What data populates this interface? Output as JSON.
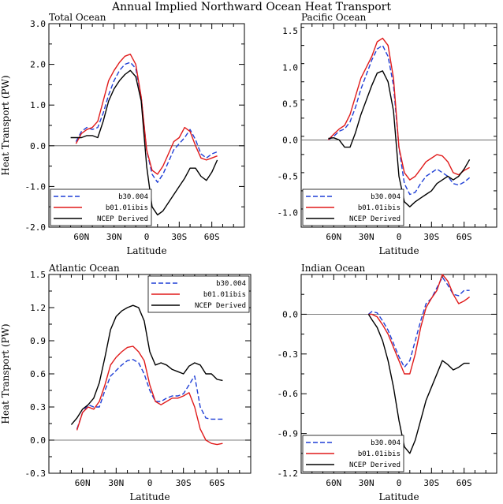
{
  "figure_title": "Annual Implied Northward Ocean Heat Transport",
  "colors": {
    "b30.004": "#1f3fd6",
    "b01.01ibis": "#e01a1a",
    "NCEP Derived": "#000000",
    "zero_line": "#555555"
  },
  "chart_data": [
    {
      "type": "line",
      "title": "Total Ocean",
      "xlabel": "Latitude",
      "ylabel": "Heat Transport (PW)",
      "x_axis_direction": "north-to-south (90N left, 90S right)",
      "xlim": [
        90,
        -90
      ],
      "ylim": [
        -2.0,
        3.0
      ],
      "xticks": [
        60,
        30,
        0,
        -30,
        -60
      ],
      "xtick_labels": [
        "60N",
        "30N",
        "0",
        "30S",
        "60S"
      ],
      "yticks": [
        -2.0,
        -1.0,
        0.0,
        1.0,
        2.0,
        3.0
      ],
      "ytick_labels": [
        "-2.0",
        "-1.0",
        "0.0",
        "1.0",
        "2.0",
        "3.0"
      ],
      "zero_line": true,
      "legend": [
        "b30.004",
        "b01.01ibis",
        "NCEP Derived"
      ],
      "legend_position": "bottom-left",
      "series": [
        {
          "name": "b30.004",
          "style": "dashed",
          "x": [
            65,
            60,
            55,
            50,
            45,
            40,
            35,
            30,
            25,
            20,
            15,
            10,
            5,
            0,
            -5,
            -10,
            -15,
            -20,
            -25,
            -30,
            -35,
            -40,
            -45,
            -50,
            -55,
            -60,
            -65
          ],
          "y": [
            0.1,
            0.35,
            0.45,
            0.4,
            0.45,
            0.8,
            1.25,
            1.6,
            1.85,
            2.0,
            2.05,
            1.9,
            1.2,
            -0.1,
            -0.7,
            -0.9,
            -0.7,
            -0.4,
            -0.1,
            0.05,
            0.2,
            0.4,
            0.15,
            -0.2,
            -0.3,
            -0.2,
            -0.15
          ]
        },
        {
          "name": "b01.01ibis",
          "style": "solid",
          "x": [
            65,
            60,
            55,
            50,
            45,
            40,
            35,
            30,
            25,
            20,
            15,
            10,
            5,
            0,
            -5,
            -10,
            -15,
            -20,
            -25,
            -30,
            -35,
            -40,
            -45,
            -50,
            -55,
            -60,
            -65
          ],
          "y": [
            0.05,
            0.3,
            0.4,
            0.45,
            0.6,
            1.1,
            1.6,
            1.85,
            2.05,
            2.2,
            2.25,
            2.0,
            1.2,
            -0.1,
            -0.6,
            -0.7,
            -0.5,
            -0.2,
            0.1,
            0.2,
            0.45,
            0.35,
            0.0,
            -0.3,
            -0.35,
            -0.3,
            -0.25
          ]
        },
        {
          "name": "NCEP Derived",
          "style": "solid",
          "x": [
            70,
            65,
            60,
            55,
            50,
            45,
            40,
            35,
            30,
            25,
            20,
            15,
            10,
            5,
            0,
            -5,
            -10,
            -15,
            -20,
            -25,
            -30,
            -35,
            -40,
            -45,
            -50,
            -55,
            -60,
            -65
          ],
          "y": [
            0.2,
            0.2,
            0.2,
            0.25,
            0.25,
            0.2,
            0.6,
            1.1,
            1.4,
            1.6,
            1.75,
            1.85,
            1.7,
            1.1,
            -0.5,
            -1.5,
            -1.7,
            -1.6,
            -1.4,
            -1.2,
            -1.0,
            -0.8,
            -0.55,
            -0.55,
            -0.75,
            -0.85,
            -0.65,
            -0.35
          ]
        }
      ]
    },
    {
      "type": "line",
      "title": "Pacific Ocean",
      "xlabel": "Latitude",
      "ylabel": "",
      "xlim": [
        90,
        -90
      ],
      "ylim": [
        -1.2,
        1.6
      ],
      "xticks": [
        60,
        30,
        0,
        -30,
        -60
      ],
      "xtick_labels": [
        "60N",
        "30N",
        "0",
        "30S",
        "60S"
      ],
      "yticks": [
        -1.0,
        -0.5,
        0.0,
        0.5,
        1.0,
        1.5
      ],
      "ytick_labels": [
        "-1.0",
        "-0.5",
        "0.0",
        "0.5",
        "1.0",
        "1.5"
      ],
      "zero_line": true,
      "legend": [
        "b30.004",
        "b01.01ibis",
        "NCEP Derived"
      ],
      "legend_position": "bottom-left",
      "series": [
        {
          "name": "b30.004",
          "style": "dashed",
          "x": [
            65,
            60,
            55,
            50,
            45,
            40,
            35,
            30,
            25,
            20,
            15,
            10,
            5,
            0,
            -5,
            -10,
            -15,
            -20,
            -25,
            -30,
            -35,
            -40,
            -45,
            -50,
            -55,
            -60,
            -65
          ],
          "y": [
            0.0,
            0.05,
            0.12,
            0.15,
            0.25,
            0.45,
            0.7,
            0.9,
            1.1,
            1.25,
            1.3,
            1.15,
            0.75,
            -0.1,
            -0.6,
            -0.75,
            -0.72,
            -0.6,
            -0.5,
            -0.45,
            -0.4,
            -0.45,
            -0.5,
            -0.6,
            -0.62,
            -0.58,
            -0.52
          ]
        },
        {
          "name": "b01.01ibis",
          "style": "solid",
          "x": [
            65,
            60,
            55,
            50,
            45,
            40,
            35,
            30,
            25,
            20,
            15,
            10,
            5,
            0,
            -5,
            -10,
            -15,
            -20,
            -25,
            -30,
            -35,
            -40,
            -45,
            -50,
            -55,
            -60,
            -65
          ],
          "y": [
            0.0,
            0.08,
            0.15,
            0.2,
            0.35,
            0.6,
            0.85,
            1.0,
            1.15,
            1.35,
            1.4,
            1.3,
            0.85,
            -0.1,
            -0.45,
            -0.55,
            -0.5,
            -0.4,
            -0.3,
            -0.25,
            -0.2,
            -0.22,
            -0.3,
            -0.45,
            -0.48,
            -0.42,
            -0.38
          ]
        },
        {
          "name": "NCEP Derived",
          "style": "solid",
          "x": [
            65,
            60,
            55,
            50,
            45,
            40,
            35,
            30,
            25,
            20,
            15,
            10,
            5,
            0,
            -5,
            -10,
            -15,
            -20,
            -25,
            -30,
            -35,
            -40,
            -45,
            -50,
            -55,
            -60,
            -65
          ],
          "y": [
            0.02,
            0.03,
            0.0,
            -0.1,
            -0.1,
            0.1,
            0.35,
            0.55,
            0.75,
            0.92,
            0.95,
            0.8,
            0.4,
            -0.5,
            -0.85,
            -0.92,
            -0.85,
            -0.8,
            -0.75,
            -0.7,
            -0.6,
            -0.55,
            -0.5,
            -0.55,
            -0.5,
            -0.4,
            -0.27
          ]
        }
      ]
    },
    {
      "type": "line",
      "title": "Atlantic Ocean",
      "xlabel": "Latitude",
      "ylabel": "Heat Transport (PW)",
      "xlim": [
        90,
        -90
      ],
      "ylim": [
        -0.3,
        1.5
      ],
      "xticks": [
        60,
        30,
        0,
        -30,
        -60
      ],
      "xtick_labels": [
        "60N",
        "30N",
        "0",
        "30S",
        "60S"
      ],
      "yticks": [
        -0.3,
        0.0,
        0.3,
        0.6,
        0.9,
        1.2,
        1.5
      ],
      "ytick_labels": [
        "-0.3",
        "0.0",
        "0.3",
        "0.6",
        "0.9",
        "1.2",
        "1.5"
      ],
      "zero_line": true,
      "legend": [
        "b30.004",
        "b01.01ibis",
        "NCEP Derived"
      ],
      "legend_position": "top-right",
      "series": [
        {
          "name": "b30.004",
          "style": "dashed",
          "x": [
            65,
            60,
            55,
            50,
            45,
            40,
            35,
            30,
            25,
            20,
            15,
            10,
            5,
            0,
            -5,
            -10,
            -15,
            -20,
            -25,
            -30,
            -35,
            -38,
            -40,
            -45,
            -50,
            -55,
            -60,
            -65
          ],
          "y": [
            0.1,
            0.25,
            0.32,
            0.3,
            0.3,
            0.45,
            0.58,
            0.63,
            0.68,
            0.72,
            0.73,
            0.7,
            0.6,
            0.45,
            0.35,
            0.35,
            0.38,
            0.4,
            0.4,
            0.42,
            0.5,
            0.55,
            0.58,
            0.3,
            0.2,
            0.19,
            0.19,
            0.19
          ]
        },
        {
          "name": "b01.01ibis",
          "style": "solid",
          "x": [
            65,
            60,
            55,
            50,
            45,
            40,
            35,
            30,
            25,
            20,
            15,
            10,
            5,
            0,
            -5,
            -10,
            -15,
            -20,
            -25,
            -30,
            -35,
            -40,
            -45,
            -50,
            -55,
            -60,
            -65
          ],
          "y": [
            0.09,
            0.25,
            0.3,
            0.28,
            0.35,
            0.5,
            0.68,
            0.75,
            0.8,
            0.84,
            0.85,
            0.8,
            0.72,
            0.5,
            0.35,
            0.32,
            0.35,
            0.38,
            0.38,
            0.4,
            0.43,
            0.3,
            0.1,
            0.0,
            -0.03,
            -0.04,
            -0.03
          ]
        },
        {
          "name": "NCEP Derived",
          "style": "solid",
          "x": [
            70,
            65,
            60,
            55,
            50,
            45,
            40,
            35,
            30,
            25,
            20,
            15,
            10,
            5,
            0,
            -5,
            -10,
            -15,
            -20,
            -25,
            -30,
            -35,
            -40,
            -45,
            -50,
            -55,
            -60,
            -65
          ],
          "y": [
            0.14,
            0.2,
            0.28,
            0.32,
            0.38,
            0.52,
            0.75,
            1.0,
            1.12,
            1.17,
            1.2,
            1.22,
            1.2,
            1.08,
            0.8,
            0.68,
            0.7,
            0.68,
            0.64,
            0.62,
            0.6,
            0.67,
            0.7,
            0.68,
            0.6,
            0.6,
            0.55,
            0.54
          ]
        }
      ]
    },
    {
      "type": "line",
      "title": "Indian Ocean",
      "xlabel": "Latitude",
      "ylabel": "",
      "xlim": [
        90,
        -90
      ],
      "ylim": [
        -1.2,
        0.3
      ],
      "xticks": [
        60,
        30,
        0,
        -30,
        -60
      ],
      "xtick_labels": [
        "60N",
        "30N",
        "0",
        "30S",
        "60S"
      ],
      "yticks": [
        -1.2,
        -0.9,
        -0.6,
        -0.3,
        0.0
      ],
      "ytick_labels": [
        "-1.2",
        "-0.9",
        "-0.6",
        "-0.3",
        "0.0"
      ],
      "zero_line": true,
      "legend": [
        "b30.004",
        "b01.01ibis",
        "NCEP Derived"
      ],
      "legend_position": "bottom-left",
      "series": [
        {
          "name": "b30.004",
          "style": "dashed",
          "x": [
            28,
            25,
            20,
            15,
            10,
            5,
            0,
            -5,
            -10,
            -15,
            -20,
            -25,
            -30,
            -35,
            -40,
            -45,
            -50,
            -55,
            -60,
            -65
          ],
          "y": [
            0.0,
            0.02,
            0.01,
            -0.05,
            -0.12,
            -0.22,
            -0.32,
            -0.4,
            -0.35,
            -0.2,
            -0.05,
            0.08,
            0.12,
            0.2,
            0.28,
            0.22,
            0.15,
            0.14,
            0.18,
            0.18
          ]
        },
        {
          "name": "b01.01ibis",
          "style": "solid",
          "x": [
            28,
            25,
            20,
            15,
            10,
            5,
            0,
            -5,
            -10,
            -15,
            -20,
            -25,
            -30,
            -35,
            -40,
            -45,
            -50,
            -55,
            -60,
            -65
          ],
          "y": [
            0.0,
            0.0,
            -0.02,
            -0.08,
            -0.15,
            -0.25,
            -0.35,
            -0.45,
            -0.45,
            -0.3,
            -0.1,
            0.05,
            0.12,
            0.18,
            0.3,
            0.25,
            0.15,
            0.08,
            0.1,
            0.13
          ]
        },
        {
          "name": "NCEP Derived",
          "style": "solid",
          "x": [
            28,
            25,
            20,
            15,
            10,
            5,
            0,
            -5,
            -10,
            -15,
            -20,
            -25,
            -30,
            -35,
            -40,
            -45,
            -50,
            -55,
            -60,
            -65
          ],
          "y": [
            0.0,
            -0.04,
            -0.1,
            -0.2,
            -0.35,
            -0.55,
            -0.8,
            -1.0,
            -1.05,
            -0.95,
            -0.8,
            -0.65,
            -0.55,
            -0.45,
            -0.35,
            -0.38,
            -0.42,
            -0.4,
            -0.37,
            -0.37
          ]
        }
      ]
    }
  ]
}
